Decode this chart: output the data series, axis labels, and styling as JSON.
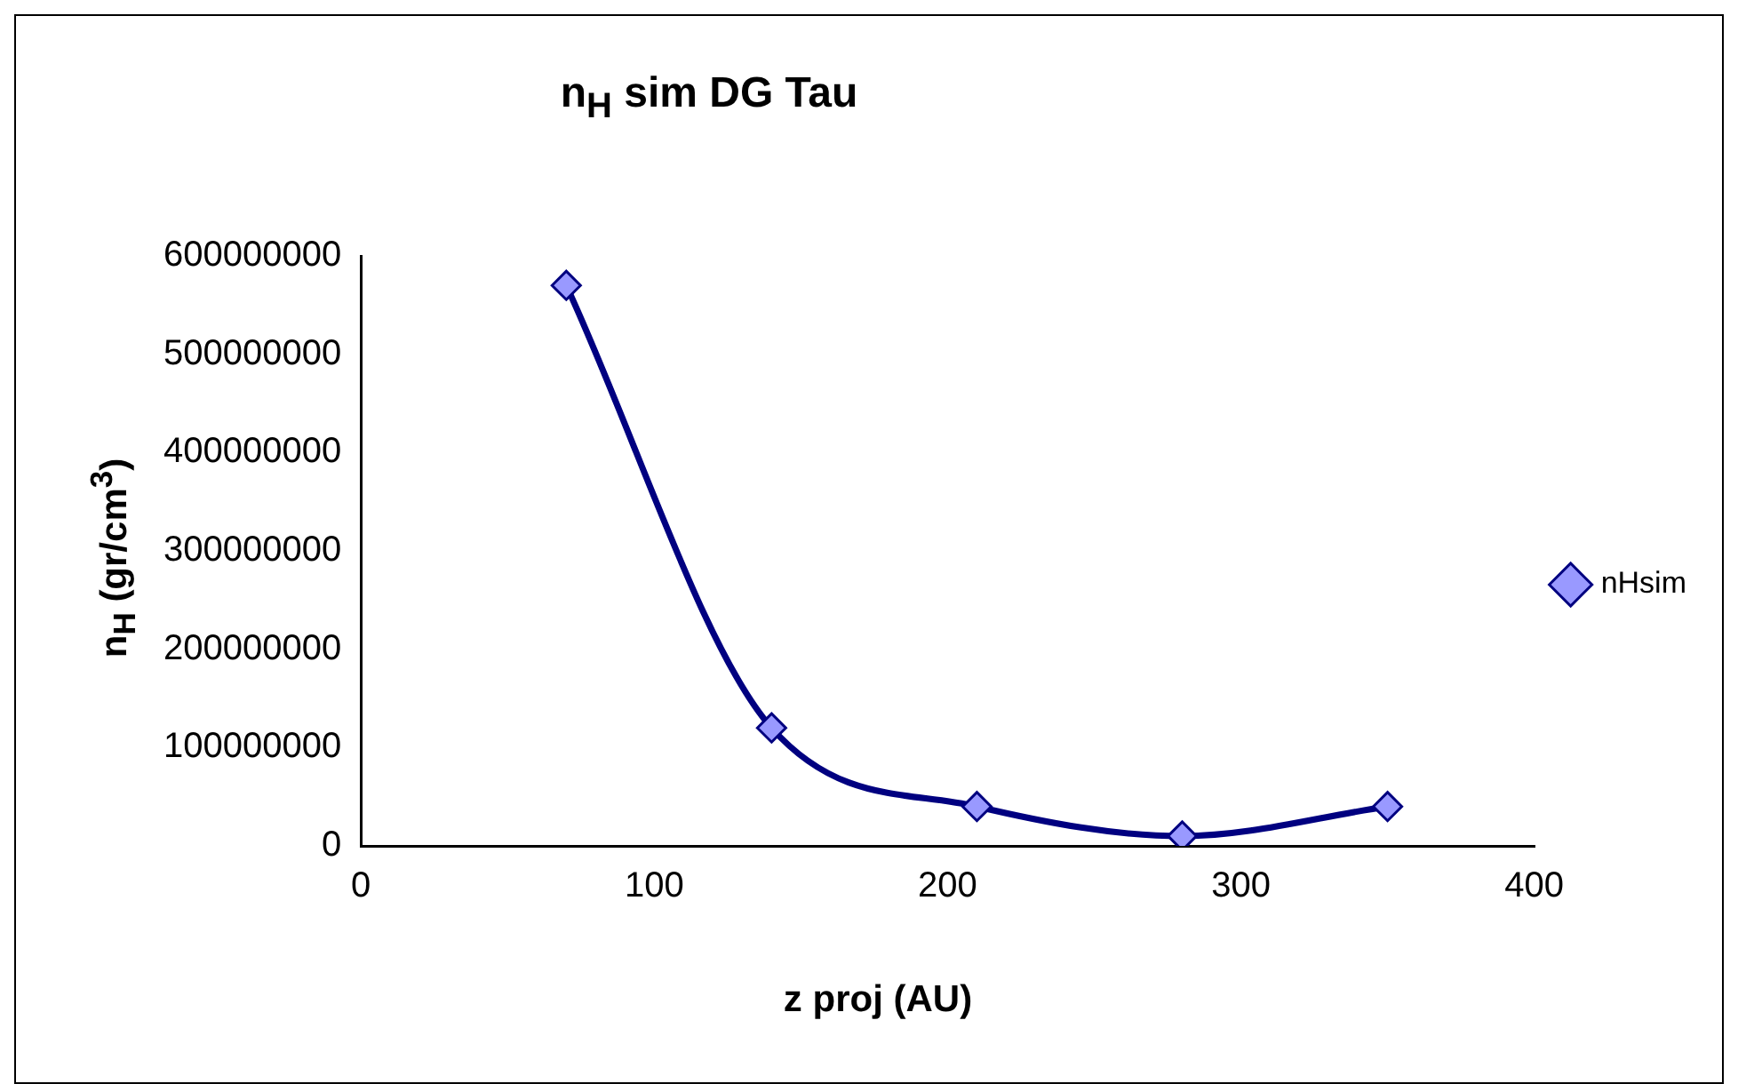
{
  "chart_data": {
    "type": "line",
    "title": "n$_{H}$  sim  DG Tau",
    "xlabel": "z proj (AU)",
    "ylabel": "n$_{H}$  (gr/cm$^{3}$)",
    "x": [
      70,
      140,
      210,
      280,
      350
    ],
    "series": [
      {
        "name": "nHsim",
        "color": "#000080",
        "values": [
          570000000,
          120000000,
          40000000,
          10000000,
          40000000
        ]
      }
    ],
    "xlim": [
      0,
      400
    ],
    "xticks": [
      0,
      100,
      200,
      300,
      400
    ],
    "ylim": [
      0,
      600000000
    ],
    "yticks": [
      0,
      100000000,
      200000000,
      300000000,
      400000000,
      500000000,
      600000000
    ],
    "grid": false,
    "legend": "right",
    "marker": "diamond",
    "line_style": "solid"
  }
}
